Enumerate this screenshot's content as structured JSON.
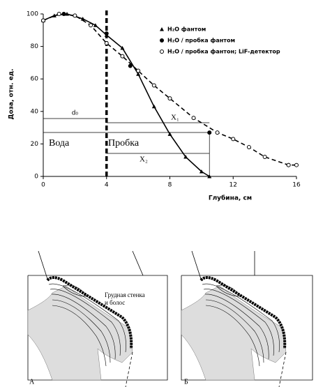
{
  "chart_data": {
    "type": "line",
    "y_label": "Доза, отн. ед.",
    "x_label": "Глубина, см",
    "xlim": [
      0,
      16
    ],
    "xticks": [
      0,
      4,
      8,
      12,
      16
    ],
    "ylim": [
      0,
      100
    ],
    "yticks": [
      0,
      20,
      40,
      60,
      80,
      100
    ],
    "boundary_x": 4,
    "annotations": {
      "d0": "d₀",
      "x1": "X₁",
      "x2": "X₂",
      "water": "Вода",
      "cork": "Пробка"
    },
    "series": [
      {
        "name": "H₂O  фантом",
        "color": "#000000",
        "marker": "triangle",
        "line": "solid",
        "x": [
          0,
          0.7,
          1.5,
          2.5,
          3.3,
          4,
          5,
          6,
          7,
          8,
          9,
          10,
          10.5
        ],
        "values": [
          96,
          99,
          100,
          97,
          93,
          87,
          79,
          63,
          43,
          26,
          12,
          3,
          0
        ]
      },
      {
        "name": "H₂O / пробка фантом",
        "color": "#000000",
        "marker": "filled",
        "line": "none",
        "x": [
          0,
          1.3,
          4,
          5.5,
          10.5,
          15.5
        ],
        "values": [
          96,
          100,
          88,
          68,
          27,
          7
        ]
      },
      {
        "name": "H₂O / пробка фантон; LiF-детектор",
        "color": "#000000",
        "marker": "open",
        "line": "dashed",
        "x": [
          0,
          1,
          2,
          3,
          4,
          5,
          6,
          7,
          8,
          9.5,
          11,
          12,
          13,
          14,
          15.5,
          16
        ],
        "values": [
          96,
          100,
          99,
          93,
          82,
          74,
          65,
          56,
          48,
          36,
          27,
          23,
          18,
          12,
          7,
          7
        ]
      }
    ]
  },
  "diagram": {
    "callout": [
      "Грудная стенка",
      "и болос"
    ],
    "panel_labels": [
      "А",
      "Б"
    ]
  }
}
